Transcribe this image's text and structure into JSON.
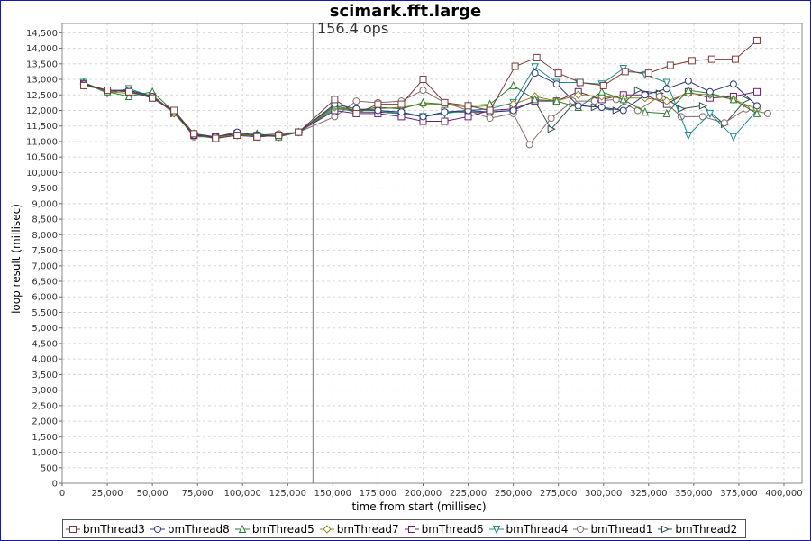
{
  "chart_data": {
    "type": "line",
    "title": "scimark.fft.large",
    "xlabel": "time from start (millisec)",
    "ylabel": "loop result (millisec)",
    "xlim": [
      0,
      410000
    ],
    "ylim": [
      0,
      14800
    ],
    "x_ticks": [
      "0",
      "25,000",
      "50,000",
      "75,000",
      "100,000",
      "125,000",
      "150,000",
      "175,000",
      "200,000",
      "225,000",
      "250,000",
      "275,000",
      "300,000",
      "325,000",
      "350,000",
      "375,000",
      "400,000"
    ],
    "x_tick_values": [
      0,
      25000,
      50000,
      75000,
      100000,
      125000,
      150000,
      175000,
      200000,
      225000,
      250000,
      275000,
      300000,
      325000,
      350000,
      375000,
      400000
    ],
    "y_tick_step": 500,
    "grid": true,
    "annotation": {
      "text": "156.4 ops",
      "x": 139000
    },
    "legend_position": "bottom",
    "series": [
      {
        "name": "bmThread3",
        "color": "#7a3b3b",
        "marker": "square",
        "x": [
          12000,
          25000,
          37000,
          50000,
          62000,
          73000,
          85000,
          97000,
          108000,
          120000,
          131000,
          151000,
          163000,
          175000,
          188000,
          200000,
          212000,
          225000,
          237000,
          251000,
          263000,
          275000,
          287000,
          300000,
          312000,
          325000,
          337000,
          349000,
          360000,
          373000,
          385000
        ],
        "y": [
          12800,
          12650,
          12600,
          12400,
          12000,
          11250,
          11100,
          11200,
          11150,
          11200,
          11300,
          12350,
          11900,
          12200,
          12200,
          13000,
          12250,
          12150,
          12000,
          13420,
          13700,
          13200,
          12900,
          12800,
          13250,
          13200,
          13450,
          13600,
          13650,
          13650,
          14250
        ]
      },
      {
        "name": "bmThread8",
        "color": "#2d3b7a",
        "marker": "circle",
        "x": [
          12000,
          25000,
          37000,
          50000,
          62000,
          73000,
          85000,
          97000,
          108000,
          120000,
          131000,
          151000,
          163000,
          175000,
          188000,
          200000,
          212000,
          225000,
          237000,
          250000,
          262000,
          274000,
          286000,
          299000,
          311000,
          323000,
          335000,
          347000,
          359000,
          372000,
          385000
        ],
        "y": [
          12850,
          12650,
          12650,
          12450,
          11950,
          11200,
          11150,
          11300,
          11200,
          11200,
          11300,
          12200,
          12050,
          12000,
          11950,
          11800,
          11950,
          12000,
          11950,
          12000,
          13200,
          12850,
          12150,
          12100,
          12000,
          12500,
          12700,
          12950,
          12600,
          12850,
          12150
        ]
      },
      {
        "name": "bmThread5",
        "color": "#2e7d32",
        "marker": "triangle",
        "x": [
          12000,
          25000,
          37000,
          50000,
          62000,
          73000,
          85000,
          97000,
          108000,
          120000,
          131000,
          151000,
          163000,
          175000,
          188000,
          200000,
          212000,
          225000,
          237000,
          250000,
          262000,
          274000,
          286000,
          299000,
          311000,
          323000,
          335000,
          347000,
          359000,
          372000,
          385000
        ],
        "y": [
          12900,
          12600,
          12450,
          12600,
          11950,
          11250,
          11100,
          11200,
          11250,
          11150,
          11300,
          12150,
          12000,
          12100,
          12050,
          12250,
          12200,
          12150,
          12200,
          12800,
          12350,
          12300,
          12100,
          12600,
          12350,
          11950,
          11900,
          12650,
          12550,
          12350,
          11900
        ]
      },
      {
        "name": "bmThread7",
        "color": "#8a8a20",
        "marker": "diamond",
        "x": [
          12000,
          25000,
          37000,
          50000,
          62000,
          73000,
          85000,
          97000,
          108000,
          120000,
          131000,
          151000,
          163000,
          175000,
          188000,
          200000,
          212000,
          225000,
          237000,
          250000,
          262000,
          274000,
          286000,
          299000,
          311000,
          323000,
          335000,
          347000,
          359000,
          372000,
          385000
        ],
        "y": [
          12850,
          12600,
          12550,
          12500,
          11900,
          11200,
          11150,
          11200,
          11200,
          11200,
          11300,
          12100,
          12000,
          12050,
          12100,
          12200,
          12200,
          12100,
          12150,
          12200,
          12450,
          12300,
          12500,
          12450,
          12400,
          12400,
          12300,
          12550,
          12500,
          12350,
          12050
        ]
      },
      {
        "name": "bmThread6",
        "color": "#6a2070",
        "marker": "square",
        "x": [
          12000,
          25000,
          37000,
          50000,
          62000,
          73000,
          85000,
          97000,
          108000,
          120000,
          131000,
          151000,
          163000,
          175000,
          188000,
          200000,
          212000,
          225000,
          237000,
          250000,
          262000,
          274000,
          286000,
          299000,
          311000,
          323000,
          335000,
          347000,
          359000,
          372000,
          385000
        ],
        "y": [
          12850,
          12650,
          12600,
          12400,
          11950,
          11200,
          11150,
          11250,
          11150,
          11200,
          11300,
          12000,
          11900,
          11900,
          11800,
          11650,
          11650,
          11800,
          12000,
          12050,
          12300,
          12300,
          12600,
          12350,
          12500,
          12500,
          12200,
          12600,
          12400,
          12450,
          12600
        ]
      },
      {
        "name": "bmThread4",
        "color": "#1e8a8a",
        "marker": "triangle-down",
        "x": [
          12000,
          25000,
          37000,
          50000,
          62000,
          73000,
          85000,
          97000,
          108000,
          120000,
          131000,
          151000,
          163000,
          175000,
          188000,
          200000,
          212000,
          225000,
          237000,
          250000,
          262000,
          274000,
          286000,
          299000,
          311000,
          323000,
          335000,
          347000,
          359000,
          372000,
          385000
        ],
        "y": [
          12900,
          12550,
          12700,
          12450,
          11950,
          11200,
          11100,
          11250,
          11200,
          11150,
          11300,
          12050,
          12000,
          12000,
          11900,
          11800,
          11900,
          12000,
          12050,
          12250,
          13400,
          12900,
          12900,
          12850,
          13350,
          13150,
          12900,
          11200,
          11900,
          11150,
          12000
        ]
      },
      {
        "name": "bmThread1",
        "color": "#8a6a6a",
        "marker": "circle",
        "x": [
          12000,
          25000,
          37000,
          50000,
          62000,
          73000,
          85000,
          97000,
          108000,
          120000,
          131000,
          151000,
          163000,
          175000,
          188000,
          200000,
          212000,
          225000,
          237000,
          250000,
          259000,
          271000,
          283000,
          295000,
          307000,
          319000,
          331000,
          343000,
          355000,
          367000,
          379000,
          391000
        ],
        "y": [
          12850,
          12600,
          12650,
          12450,
          11950,
          11150,
          11150,
          11250,
          11200,
          11250,
          11300,
          11800,
          12300,
          12250,
          12300,
          12650,
          12250,
          12000,
          11750,
          11900,
          10900,
          11750,
          12300,
          12300,
          12350,
          12000,
          12450,
          11800,
          11800,
          11600,
          12050,
          11900
        ]
      },
      {
        "name": "bmThread2",
        "color": "#2f4f4f",
        "marker": "triangle-right",
        "x": [
          12000,
          25000,
          37000,
          50000,
          62000,
          73000,
          85000,
          97000,
          108000,
          120000,
          131000,
          151000,
          163000,
          175000,
          188000,
          200000,
          212000,
          225000,
          237000,
          250000,
          262000,
          271000,
          283000,
          295000,
          307000,
          319000,
          331000,
          343000,
          355000,
          367000,
          379000
        ],
        "y": [
          12850,
          12650,
          12600,
          12450,
          11900,
          11250,
          11150,
          11200,
          11150,
          11200,
          11300,
          12100,
          11950,
          11950,
          11900,
          11800,
          11950,
          11950,
          11950,
          12000,
          12300,
          11400,
          12200,
          12100,
          12000,
          12650,
          12550,
          12050,
          12150,
          11550,
          12350
        ]
      }
    ]
  }
}
